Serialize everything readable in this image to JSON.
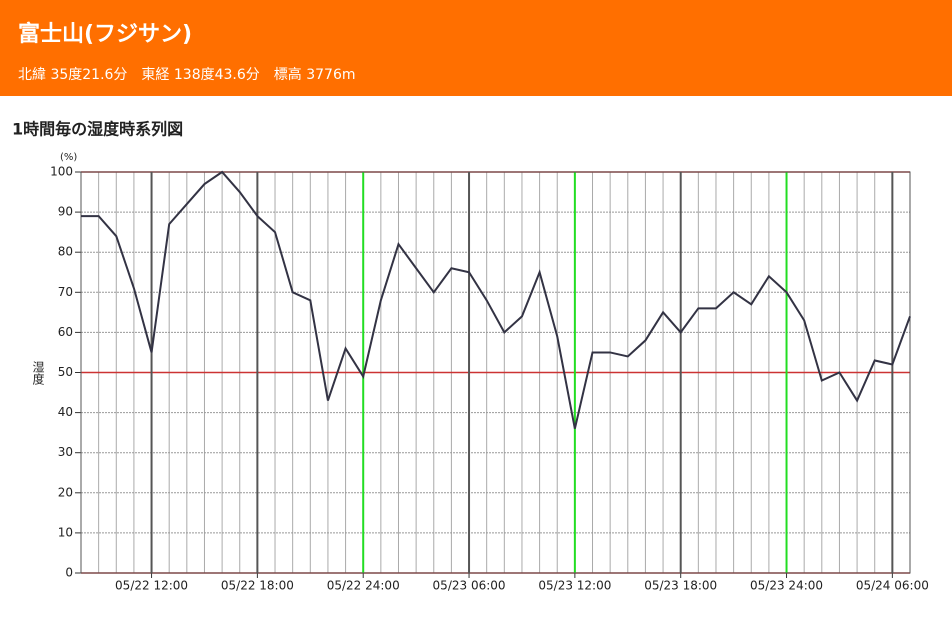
{
  "header": {
    "title": "富士山(フジサン)",
    "location": "北緯 35度21.6分　東経 138度43.6分　標高 3776m"
  },
  "chart_data": {
    "type": "line",
    "title": "1時間毎の湿度時系列図",
    "y_unit": "(%)",
    "y_label": "湿度",
    "x": [
      "05/22 08:00",
      "05/22 09:00",
      "05/22 10:00",
      "05/22 11:00",
      "05/22 12:00",
      "05/22 13:00",
      "05/22 14:00",
      "05/22 15:00",
      "05/22 16:00",
      "05/22 17:00",
      "05/22 18:00",
      "05/22 19:00",
      "05/22 20:00",
      "05/22 21:00",
      "05/22 22:00",
      "05/22 23:00",
      "05/22 24:00",
      "05/23 01:00",
      "05/23 02:00",
      "05/23 03:00",
      "05/23 04:00",
      "05/23 05:00",
      "05/23 06:00",
      "05/23 07:00",
      "05/23 08:00",
      "05/23 09:00",
      "05/23 10:00",
      "05/23 11:00",
      "05/23 12:00",
      "05/23 13:00",
      "05/23 14:00",
      "05/23 15:00",
      "05/23 16:00",
      "05/23 17:00",
      "05/23 18:00",
      "05/23 19:00",
      "05/23 20:00",
      "05/23 21:00",
      "05/23 22:00",
      "05/23 23:00",
      "05/23 24:00",
      "05/24 01:00",
      "05/24 02:00",
      "05/24 03:00",
      "05/24 04:00",
      "05/24 05:00",
      "05/24 06:00",
      "05/24 07:00"
    ],
    "series": [
      {
        "name": "湿度",
        "color": "#333344",
        "values": [
          89,
          89,
          84,
          71,
          55,
          87,
          92,
          97,
          100,
          95,
          89,
          85,
          70,
          68,
          43,
          56,
          49,
          68,
          82,
          76,
          70,
          76,
          75,
          68,
          60,
          64,
          75,
          59,
          36,
          55,
          55,
          54,
          58,
          65,
          60,
          66,
          66,
          70,
          67,
          74,
          70,
          63,
          48,
          50,
          43,
          53,
          52,
          64
        ]
      }
    ],
    "xticks": [
      "05/22 12:00",
      "05/22 18:00",
      "05/22 24:00",
      "05/23 06:00",
      "05/23 12:00",
      "05/23 18:00",
      "05/23 24:00",
      "05/24 06:00"
    ],
    "xtick_colors": [
      "#555555",
      "#555555",
      "#22dd22",
      "#555555",
      "#22dd22",
      "#555555",
      "#22dd22",
      "#555555"
    ],
    "ylim": [
      0,
      100
    ],
    "yticks": [
      0,
      10,
      20,
      30,
      40,
      50,
      60,
      70,
      80,
      90,
      100
    ],
    "ytick_colors": [
      "#cc3333",
      "#999999",
      "#999999",
      "#999999",
      "#999999",
      "#cc3333",
      "#999999",
      "#999999",
      "#999999",
      "#999999",
      "#cc3333"
    ],
    "grid": true
  }
}
